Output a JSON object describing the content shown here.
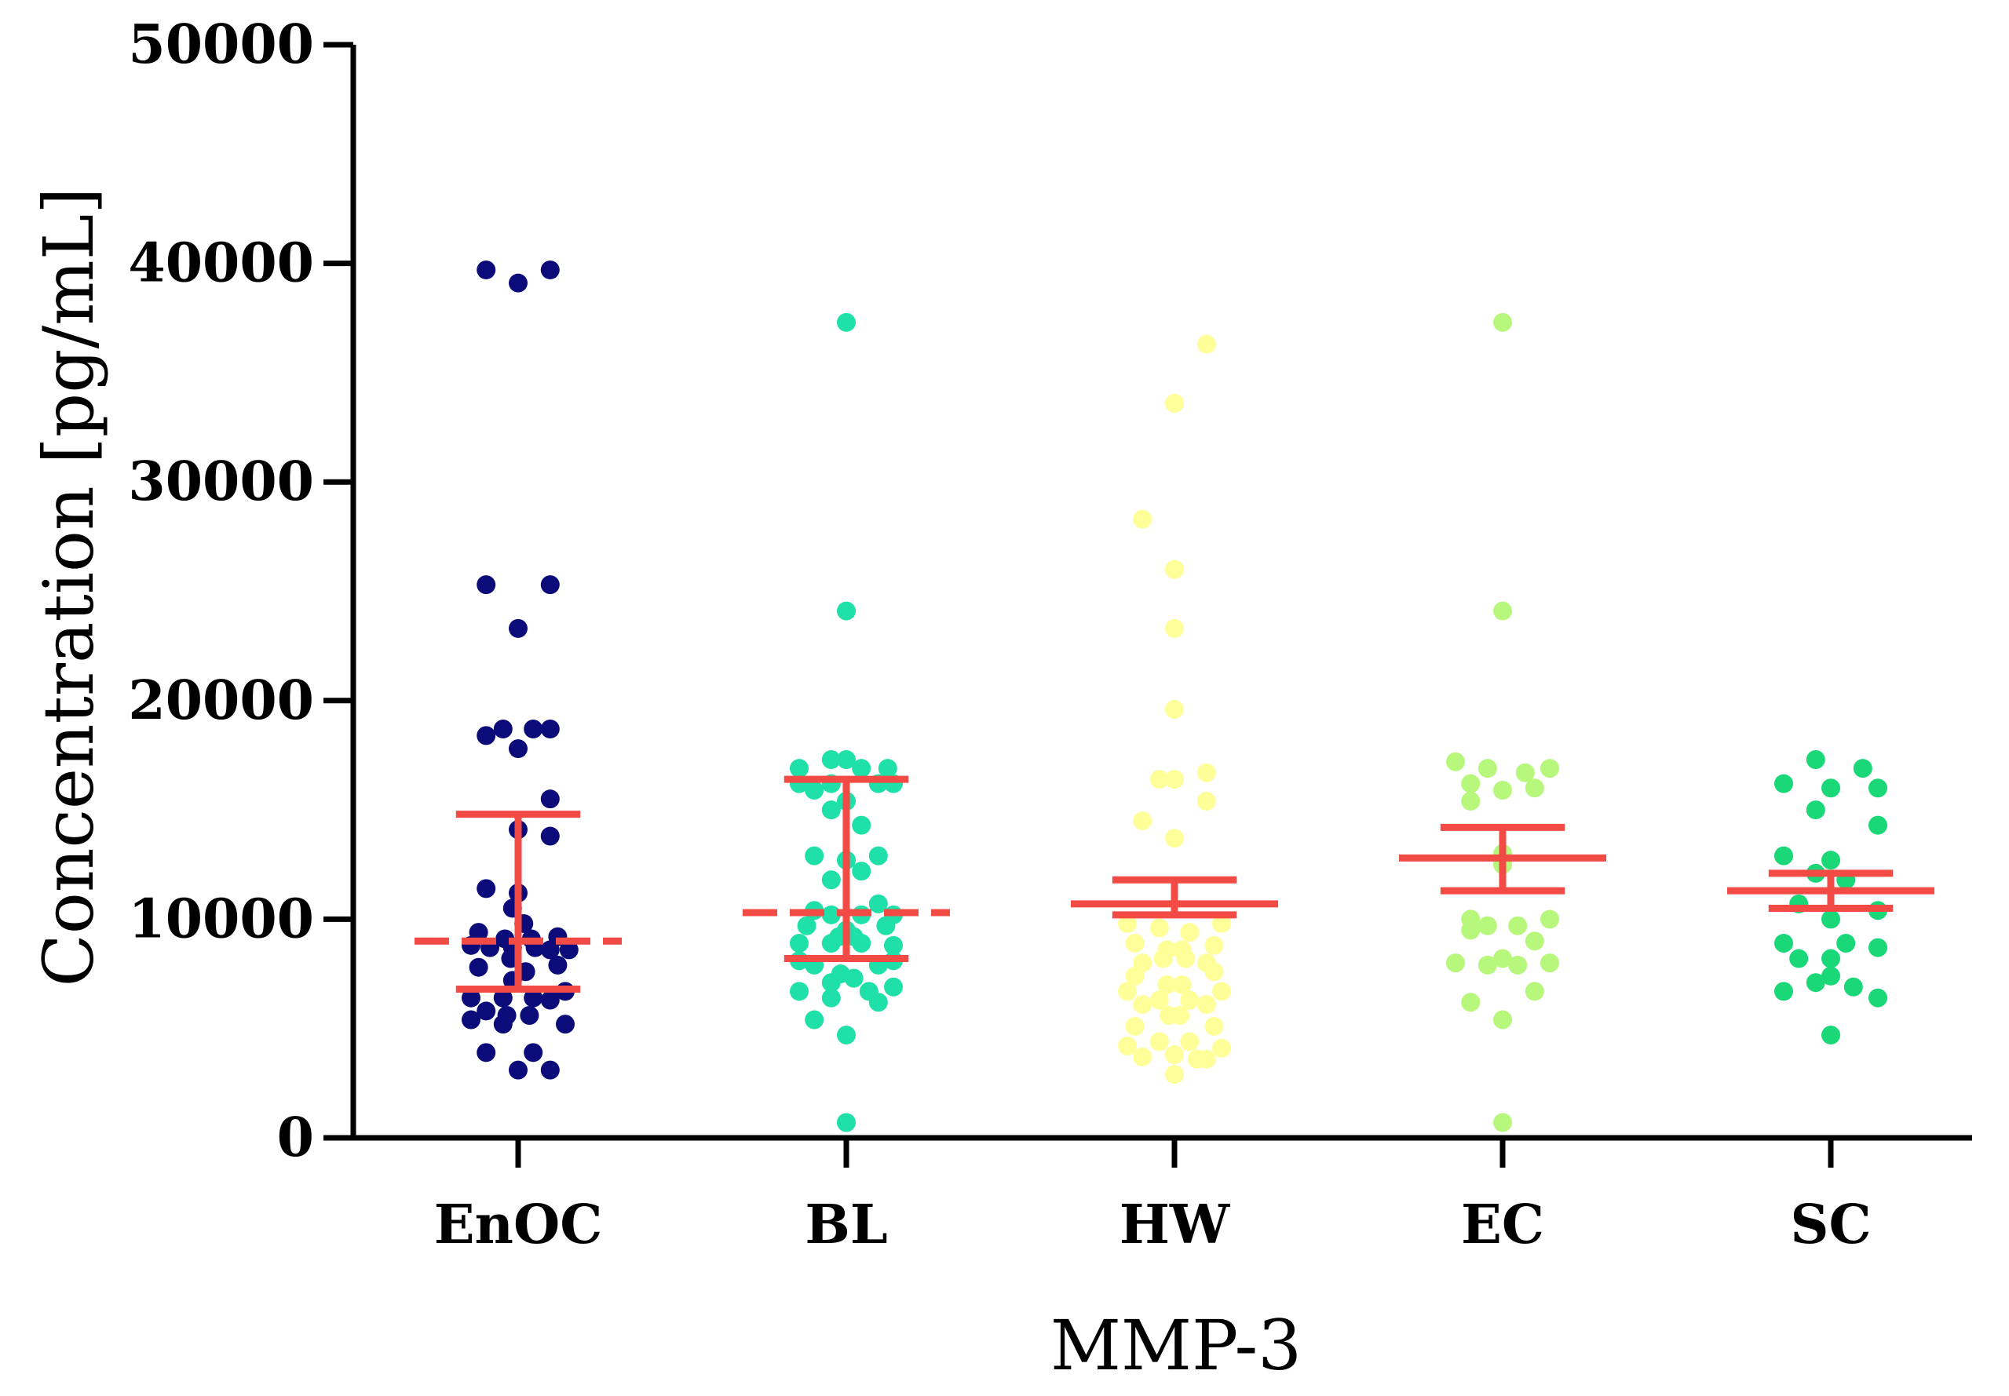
{
  "chart_data": {
    "type": "scatter",
    "title": "",
    "xlabel": "MMP-3",
    "ylabel": "Concentration [pg/mL]",
    "ylim": [
      0,
      50000
    ],
    "yticks": [
      0,
      10000,
      20000,
      30000,
      40000,
      50000
    ],
    "categories": [
      "EnOC",
      "BL",
      "HW",
      "EC",
      "SC"
    ],
    "series": [
      {
        "name": "EnOC",
        "color": "#0b0b7a",
        "summary": {
          "center": 9000,
          "lower": 6800,
          "upper": 14800,
          "style": "median-iqr"
        },
        "points": [
          [
            -0.17,
            39700
          ],
          [
            0,
            39100
          ],
          [
            0.17,
            39700
          ],
          [
            -0.17,
            25300
          ],
          [
            0.17,
            25300
          ],
          [
            0,
            23300
          ],
          [
            -0.17,
            18400
          ],
          [
            -0.08,
            18700
          ],
          [
            0,
            17800
          ],
          [
            0.08,
            18700
          ],
          [
            0.17,
            18700
          ],
          [
            0.17,
            15500
          ],
          [
            0,
            14100
          ],
          [
            0.17,
            13800
          ],
          [
            -0.17,
            11400
          ],
          [
            0,
            11200
          ],
          [
            -0.03,
            10500
          ],
          [
            0.03,
            9800
          ],
          [
            -0.21,
            9400
          ],
          [
            0.21,
            9200
          ],
          [
            -0.07,
            9100
          ],
          [
            0.07,
            9100
          ],
          [
            -0.25,
            8800
          ],
          [
            -0.15,
            8700
          ],
          [
            -0.03,
            8700
          ],
          [
            0.09,
            8700
          ],
          [
            0.17,
            8600
          ],
          [
            0.27,
            8600
          ],
          [
            -0.04,
            8200
          ],
          [
            -0.21,
            7800
          ],
          [
            0.21,
            7900
          ],
          [
            0.04,
            7600
          ],
          [
            -0.03,
            7200
          ],
          [
            -0.25,
            6400
          ],
          [
            -0.08,
            6400
          ],
          [
            0.08,
            6400
          ],
          [
            0.17,
            6300
          ],
          [
            0.25,
            6700
          ],
          [
            -0.17,
            5800
          ],
          [
            -0.06,
            5600
          ],
          [
            0.06,
            5600
          ],
          [
            -0.25,
            5400
          ],
          [
            -0.08,
            5200
          ],
          [
            0.25,
            5200
          ],
          [
            -0.17,
            3900
          ],
          [
            0.08,
            3900
          ],
          [
            0,
            3100
          ],
          [
            0.17,
            3100
          ]
        ]
      },
      {
        "name": "BL",
        "color": "#1fe0a8",
        "summary": {
          "center": 10300,
          "lower": 8200,
          "upper": 16400,
          "style": "median-iqr"
        },
        "points": [
          [
            0,
            37300
          ],
          [
            0,
            24100
          ],
          [
            -0.25,
            16900
          ],
          [
            -0.08,
            17300
          ],
          [
            0,
            17300
          ],
          [
            0.08,
            16900
          ],
          [
            0.22,
            16900
          ],
          [
            -0.25,
            16200
          ],
          [
            -0.17,
            15900
          ],
          [
            -0.08,
            16200
          ],
          [
            0.17,
            16200
          ],
          [
            0.25,
            16200
          ],
          [
            -0.08,
            15000
          ],
          [
            0,
            15400
          ],
          [
            0.08,
            14300
          ],
          [
            -0.17,
            12900
          ],
          [
            0,
            12700
          ],
          [
            0.17,
            12900
          ],
          [
            -0.08,
            11800
          ],
          [
            0.08,
            12200
          ],
          [
            0.17,
            10700
          ],
          [
            -0.17,
            10400
          ],
          [
            -0.08,
            10200
          ],
          [
            0.08,
            10200
          ],
          [
            0.25,
            10200
          ],
          [
            -0.21,
            9700
          ],
          [
            0.21,
            9700
          ],
          [
            0,
            9500
          ],
          [
            -0.04,
            9200
          ],
          [
            0.04,
            9200
          ],
          [
            -0.25,
            8900
          ],
          [
            -0.08,
            8900
          ],
          [
            0.08,
            8900
          ],
          [
            0.25,
            8800
          ],
          [
            -0.25,
            8100
          ],
          [
            -0.17,
            7900
          ],
          [
            0.17,
            7900
          ],
          [
            0.25,
            8100
          ],
          [
            -0.03,
            7500
          ],
          [
            0.04,
            7300
          ],
          [
            -0.08,
            7100
          ],
          [
            0.12,
            6700
          ],
          [
            0.25,
            6900
          ],
          [
            -0.25,
            6700
          ],
          [
            -0.08,
            6400
          ],
          [
            0.17,
            6200
          ],
          [
            -0.17,
            5400
          ],
          [
            0,
            4700
          ],
          [
            0,
            700
          ]
        ]
      },
      {
        "name": "HW",
        "color": "#ffff99",
        "summary": {
          "center": 10700,
          "lower": 10200,
          "upper": 11800,
          "style": "mean-sem"
        },
        "points": [
          [
            0.17,
            36300
          ],
          [
            0,
            33600
          ],
          [
            -0.17,
            28300
          ],
          [
            0,
            26000
          ],
          [
            0,
            23300
          ],
          [
            0,
            19600
          ],
          [
            -0.08,
            16400
          ],
          [
            0,
            16400
          ],
          [
            0.17,
            16700
          ],
          [
            0.17,
            15400
          ],
          [
            -0.17,
            14500
          ],
          [
            0,
            13700
          ],
          [
            -0.25,
            9800
          ],
          [
            -0.08,
            9600
          ],
          [
            0.08,
            9400
          ],
          [
            0.25,
            9800
          ],
          [
            -0.21,
            8900
          ],
          [
            -0.04,
            8600
          ],
          [
            0.04,
            8600
          ],
          [
            0.21,
            8800
          ],
          [
            -0.17,
            8000
          ],
          [
            -0.06,
            8200
          ],
          [
            0.06,
            8200
          ],
          [
            0.17,
            8000
          ],
          [
            -0.21,
            7400
          ],
          [
            0.21,
            7600
          ],
          [
            -0.04,
            7000
          ],
          [
            0.04,
            7000
          ],
          [
            -0.25,
            6700
          ],
          [
            0.25,
            6700
          ],
          [
            -0.17,
            6100
          ],
          [
            -0.08,
            6300
          ],
          [
            0.08,
            6300
          ],
          [
            0.17,
            6100
          ],
          [
            -0.03,
            5600
          ],
          [
            0.03,
            5600
          ],
          [
            -0.21,
            5100
          ],
          [
            0.21,
            5100
          ],
          [
            -0.08,
            4400
          ],
          [
            0.08,
            4400
          ],
          [
            -0.25,
            4200
          ],
          [
            0.25,
            4100
          ],
          [
            -0.17,
            3700
          ],
          [
            0,
            3800
          ],
          [
            0.12,
            3600
          ],
          [
            0.17,
            3600
          ],
          [
            0,
            2900
          ]
        ]
      },
      {
        "name": "EC",
        "color": "#b7f77c",
        "summary": {
          "center": 12800,
          "lower": 11300,
          "upper": 14200,
          "style": "mean-sem"
        },
        "points": [
          [
            0,
            37300
          ],
          [
            0,
            24100
          ],
          [
            -0.25,
            17200
          ],
          [
            -0.08,
            16900
          ],
          [
            0.12,
            16700
          ],
          [
            0.25,
            16900
          ],
          [
            -0.17,
            16200
          ],
          [
            0,
            15900
          ],
          [
            0.17,
            16000
          ],
          [
            -0.17,
            15400
          ],
          [
            0,
            13000
          ],
          [
            0,
            12500
          ],
          [
            -0.17,
            10000
          ],
          [
            0.25,
            10000
          ],
          [
            -0.17,
            9500
          ],
          [
            -0.08,
            9700
          ],
          [
            0.08,
            9700
          ],
          [
            0.17,
            9000
          ],
          [
            -0.25,
            8000
          ],
          [
            -0.08,
            7900
          ],
          [
            0,
            8200
          ],
          [
            0.08,
            7900
          ],
          [
            0.25,
            8000
          ],
          [
            0.17,
            6700
          ],
          [
            -0.17,
            6200
          ],
          [
            0,
            5400
          ],
          [
            0,
            700
          ]
        ]
      },
      {
        "name": "SC",
        "color": "#1ad778",
        "summary": {
          "center": 11300,
          "lower": 10500,
          "upper": 12100,
          "style": "mean-sem"
        },
        "points": [
          [
            -0.08,
            17300
          ],
          [
            0.17,
            16900
          ],
          [
            -0.25,
            16200
          ],
          [
            0,
            16000
          ],
          [
            0.25,
            16000
          ],
          [
            -0.08,
            15000
          ],
          [
            0.25,
            14300
          ],
          [
            -0.25,
            12900
          ],
          [
            0,
            12700
          ],
          [
            -0.08,
            12100
          ],
          [
            0.08,
            11800
          ],
          [
            -0.17,
            10700
          ],
          [
            0,
            10000
          ],
          [
            0.25,
            10400
          ],
          [
            -0.25,
            8900
          ],
          [
            0.08,
            8900
          ],
          [
            0.25,
            8700
          ],
          [
            -0.17,
            8200
          ],
          [
            0,
            8200
          ],
          [
            -0.08,
            7100
          ],
          [
            0,
            7400
          ],
          [
            0.12,
            6900
          ],
          [
            0.25,
            6400
          ],
          [
            -0.25,
            6700
          ],
          [
            0,
            4700
          ]
        ]
      }
    ]
  }
}
